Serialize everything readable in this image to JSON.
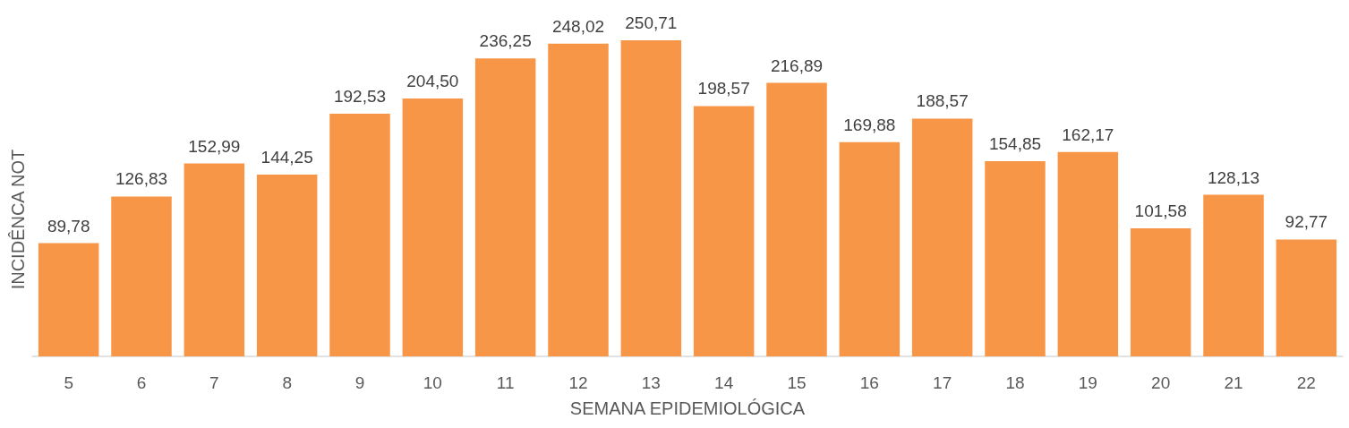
{
  "chart_data": {
    "type": "bar",
    "xlabel": "SEMANA EPIDEMIOLÓGICA",
    "ylabel": "INCIDÊNCA NOT",
    "categories": [
      "5",
      "6",
      "7",
      "8",
      "9",
      "10",
      "11",
      "12",
      "13",
      "14",
      "15",
      "16",
      "17",
      "18",
      "19",
      "20",
      "21",
      "22"
    ],
    "values": [
      89.78,
      126.83,
      152.99,
      144.25,
      192.53,
      204.5,
      236.25,
      248.02,
      250.71,
      198.57,
      216.89,
      169.88,
      188.57,
      154.85,
      162.17,
      101.58,
      128.13,
      92.77
    ],
    "value_labels": [
      "89,78",
      "126,83",
      "152,99",
      "144,25",
      "192,53",
      "204,50",
      "236,25",
      "248,02",
      "250,71",
      "198,57",
      "216,89",
      "169,88",
      "188,57",
      "154,85",
      "162,17",
      "101,58",
      "128,13",
      "92,77"
    ],
    "color": "#f79646"
  }
}
